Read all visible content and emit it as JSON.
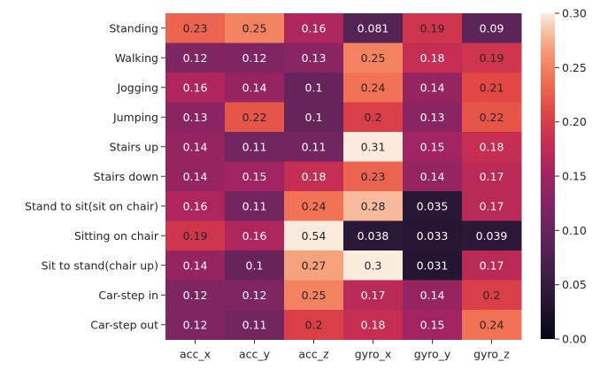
{
  "chart_data": {
    "type": "heatmap",
    "title": "",
    "xlabel": "",
    "ylabel": "",
    "columns": [
      "acc_x",
      "acc_y",
      "acc_z",
      "gyro_x",
      "gyro_y",
      "gyro_z"
    ],
    "rows": [
      "Standing",
      "Walking",
      "Jogging",
      "Jumping",
      "Stairs up",
      "Stairs down",
      "Stand to sit(sit on chair)",
      "Sitting on chair",
      "Sit to stand(chair up)",
      "Car-step in",
      "Car-step out"
    ],
    "values": [
      [
        0.23,
        0.25,
        0.16,
        0.081,
        0.19,
        0.09
      ],
      [
        0.12,
        0.12,
        0.13,
        0.25,
        0.18,
        0.19
      ],
      [
        0.16,
        0.14,
        0.1,
        0.24,
        0.14,
        0.21
      ],
      [
        0.13,
        0.22,
        0.1,
        0.2,
        0.13,
        0.22
      ],
      [
        0.14,
        0.11,
        0.11,
        0.31,
        0.15,
        0.18
      ],
      [
        0.14,
        0.15,
        0.18,
        0.23,
        0.14,
        0.17
      ],
      [
        0.16,
        0.11,
        0.24,
        0.28,
        0.035,
        0.17
      ],
      [
        0.19,
        0.16,
        0.54,
        0.038,
        0.033,
        0.039
      ],
      [
        0.14,
        0.1,
        0.27,
        0.3,
        0.031,
        0.17
      ],
      [
        0.12,
        0.12,
        0.25,
        0.17,
        0.14,
        0.2
      ],
      [
        0.12,
        0.11,
        0.2,
        0.18,
        0.15,
        0.24
      ]
    ],
    "colorbar": {
      "vmin": 0.0,
      "vmax": 0.3,
      "ticks": [
        "0.00",
        "0.05",
        "0.10",
        "0.15",
        "0.20",
        "0.25",
        "0.30"
      ],
      "colormap": "rocket"
    }
  }
}
